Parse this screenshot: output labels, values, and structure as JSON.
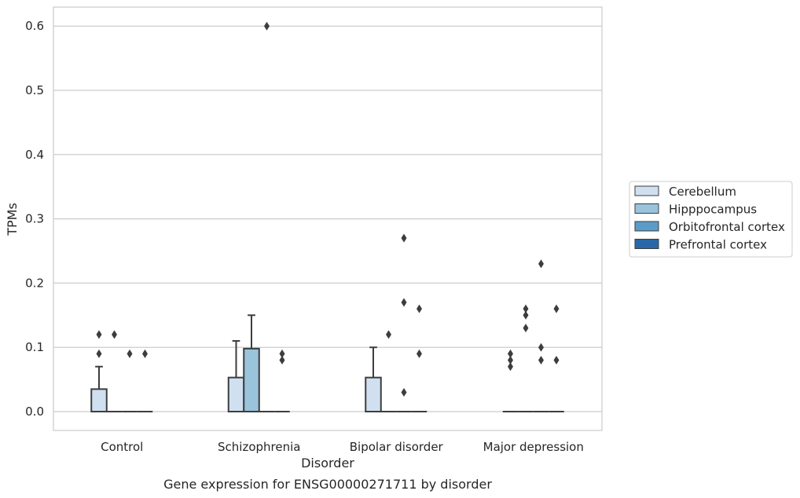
{
  "chart_data": {
    "type": "box",
    "title": "Gene expression for ENSG00000271711 by disorder",
    "xlabel": "Disorder",
    "ylabel": "TPMs",
    "ylim": [
      -0.03,
      0.63
    ],
    "yticks": [
      0.0,
      0.1,
      0.2,
      0.3,
      0.4,
      0.5,
      0.6
    ],
    "ytick_labels": [
      "0.0",
      "0.1",
      "0.2",
      "0.3",
      "0.4",
      "0.5",
      "0.6"
    ],
    "grid": "horizontal",
    "legend_position": "right",
    "categories": [
      "Control",
      "Schizophrenia",
      "Bipolar disorder",
      "Major depression"
    ],
    "series": [
      {
        "name": "Cerebellum",
        "color": "#d1e0f0"
      },
      {
        "name": "Hipppocampus",
        "color": "#9ac3dc"
      },
      {
        "name": "Orbitofrontal cortex",
        "color": "#5b9bc8"
      },
      {
        "name": "Prefrontal cortex",
        "color": "#2868a8"
      }
    ],
    "boxes": [
      [
        {
          "q1": 0,
          "median": 0,
          "q3": 0.035,
          "whisker_low": 0,
          "whisker_high": 0.07,
          "outliers": [
            0.09,
            0.12
          ]
        },
        {
          "q1": 0,
          "median": 0,
          "q3": 0,
          "whisker_low": 0,
          "whisker_high": 0,
          "outliers": [
            0.12
          ]
        },
        {
          "q1": 0,
          "median": 0,
          "q3": 0,
          "whisker_low": 0,
          "whisker_high": 0,
          "outliers": [
            0.09
          ]
        },
        {
          "q1": 0,
          "median": 0,
          "q3": 0,
          "whisker_low": 0,
          "whisker_high": 0,
          "outliers": [
            0.09
          ]
        }
      ],
      [
        {
          "q1": 0,
          "median": 0,
          "q3": 0.053,
          "whisker_low": 0,
          "whisker_high": 0.11,
          "outliers": []
        },
        {
          "q1": 0,
          "median": 0,
          "q3": 0.098,
          "whisker_low": 0,
          "whisker_high": 0.15,
          "outliers": []
        },
        {
          "q1": 0,
          "median": 0,
          "q3": 0,
          "whisker_low": 0,
          "whisker_high": 0,
          "outliers": [
            0.6
          ]
        },
        {
          "q1": 0,
          "median": 0,
          "q3": 0,
          "whisker_low": 0,
          "whisker_high": 0,
          "outliers": [
            0.08,
            0.09
          ]
        }
      ],
      [
        {
          "q1": 0,
          "median": 0,
          "q3": 0.053,
          "whisker_low": 0,
          "whisker_high": 0.1,
          "outliers": []
        },
        {
          "q1": 0,
          "median": 0,
          "q3": 0,
          "whisker_low": 0,
          "whisker_high": 0,
          "outliers": [
            0.12
          ]
        },
        {
          "q1": 0,
          "median": 0,
          "q3": 0,
          "whisker_low": 0,
          "whisker_high": 0,
          "outliers": [
            0.03,
            0.17,
            0.27
          ]
        },
        {
          "q1": 0,
          "median": 0,
          "q3": 0,
          "whisker_low": 0,
          "whisker_high": 0,
          "outliers": [
            0.09,
            0.16
          ]
        }
      ],
      [
        {
          "q1": 0,
          "median": 0,
          "q3": 0,
          "whisker_low": 0,
          "whisker_high": 0,
          "outliers": [
            0.07,
            0.08,
            0.09
          ]
        },
        {
          "q1": 0,
          "median": 0,
          "q3": 0,
          "whisker_low": 0,
          "whisker_high": 0,
          "outliers": [
            0.13,
            0.15,
            0.16
          ]
        },
        {
          "q1": 0,
          "median": 0,
          "q3": 0,
          "whisker_low": 0,
          "whisker_high": 0,
          "outliers": [
            0.08,
            0.1,
            0.23
          ]
        },
        {
          "q1": 0,
          "median": 0,
          "q3": 0,
          "whisker_low": 0,
          "whisker_high": 0,
          "outliers": [
            0.08,
            0.16
          ]
        }
      ]
    ]
  }
}
